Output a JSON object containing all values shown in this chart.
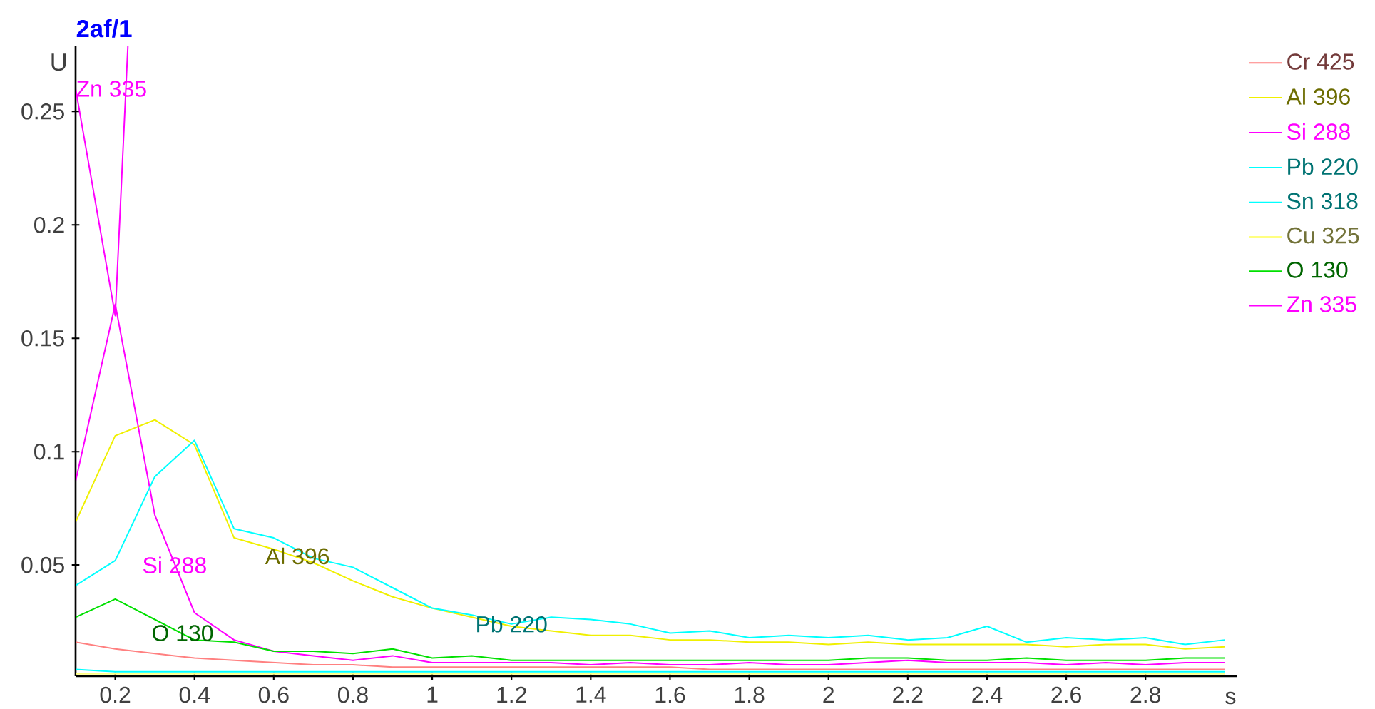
{
  "chart_data": {
    "type": "line",
    "title": "2af/1",
    "xlabel": "s",
    "ylabel": "U",
    "x": [
      0.1,
      0.2,
      0.3,
      0.4,
      0.5,
      0.6,
      0.7,
      0.8,
      0.9,
      1.0,
      1.1,
      1.2,
      1.3,
      1.4,
      1.5,
      1.6,
      1.7,
      1.8,
      1.9,
      2.0,
      2.1,
      2.2,
      2.3,
      2.4,
      2.5,
      2.6,
      2.7,
      2.8,
      2.9,
      3.0
    ],
    "series": [
      {
        "name": "Cr 425",
        "color": "#ff8080",
        "values": [
          0.016,
          0.013,
          0.011,
          0.009,
          0.008,
          0.007,
          0.006,
          0.006,
          0.005,
          0.005,
          0.005,
          0.005,
          0.005,
          0.005,
          0.005,
          0.005,
          0.004,
          0.004,
          0.004,
          0.004,
          0.004,
          0.004,
          0.004,
          0.004,
          0.004,
          0.004,
          0.004,
          0.004,
          0.004,
          0.004
        ]
      },
      {
        "name": "Al 396",
        "color": "#f0f000",
        "values": [
          0.069,
          0.107,
          0.114,
          0.103,
          0.062,
          0.057,
          0.051,
          0.043,
          0.036,
          0.031,
          0.027,
          0.023,
          0.021,
          0.019,
          0.019,
          0.017,
          0.017,
          0.016,
          0.016,
          0.015,
          0.016,
          0.015,
          0.015,
          0.015,
          0.015,
          0.014,
          0.015,
          0.015,
          0.013,
          0.014
        ]
      },
      {
        "name": "Si 288",
        "color": "#ff00ff",
        "values": [
          0.087,
          0.165,
          0.072,
          0.029,
          0.017,
          0.012,
          0.01,
          0.008,
          0.01,
          0.007,
          0.007,
          0.007,
          0.007,
          0.006,
          0.007,
          0.006,
          0.006,
          0.007,
          0.006,
          0.006,
          0.007,
          0.008,
          0.007,
          0.007,
          0.007,
          0.006,
          0.007,
          0.006,
          0.007,
          0.007
        ]
      },
      {
        "name": "Pb 220",
        "color": "#00ffff",
        "values": [
          0.041,
          0.052,
          0.089,
          0.105,
          0.066,
          0.062,
          0.053,
          0.049,
          0.04,
          0.031,
          0.028,
          0.024,
          0.027,
          0.026,
          0.024,
          0.02,
          0.021,
          0.018,
          0.019,
          0.018,
          0.019,
          0.017,
          0.018,
          0.023,
          0.016,
          0.018,
          0.017,
          0.018,
          0.015,
          0.017
        ]
      },
      {
        "name": "Sn 318",
        "color": "#00ffff",
        "values": [
          0.004,
          0.003,
          0.003,
          0.003,
          0.003,
          0.003,
          0.003,
          0.003,
          0.003,
          0.003,
          0.003,
          0.003,
          0.003,
          0.003,
          0.003,
          0.003,
          0.003,
          0.003,
          0.003,
          0.003,
          0.003,
          0.003,
          0.003,
          0.003,
          0.003,
          0.003,
          0.003,
          0.003,
          0.003,
          0.003
        ]
      },
      {
        "name": "Cu 325",
        "color": "#ffff80",
        "values": [
          0.002,
          0.002,
          0.002,
          0.002,
          0.002,
          0.002,
          0.002,
          0.002,
          0.002,
          0.002,
          0.002,
          0.002,
          0.002,
          0.002,
          0.002,
          0.002,
          0.002,
          0.002,
          0.002,
          0.002,
          0.002,
          0.002,
          0.002,
          0.002,
          0.002,
          0.002,
          0.002,
          0.002,
          0.002,
          0.002
        ]
      },
      {
        "name": "O 130",
        "color": "#00e000",
        "values": [
          0.027,
          0.035,
          0.026,
          0.017,
          0.016,
          0.012,
          0.012,
          0.011,
          0.013,
          0.009,
          0.01,
          0.008,
          0.008,
          0.008,
          0.008,
          0.008,
          0.008,
          0.008,
          0.008,
          0.008,
          0.009,
          0.009,
          0.008,
          0.008,
          0.009,
          0.008,
          0.008,
          0.008,
          0.009,
          0.009
        ]
      },
      {
        "name": "Zn 335",
        "color": "#ff00ff",
        "x": [
          0.1,
          0.2,
          0.232
        ],
        "values": [
          0.26,
          0.16,
          0.279
        ]
      }
    ],
    "annotations": [
      {
        "text": "Zn 335",
        "x": 0.1,
        "y": 0.26
      },
      {
        "text": "Si 288",
        "x": 0.35,
        "y": 0.05
      },
      {
        "text": "Al 396",
        "x": 0.66,
        "y": 0.054
      },
      {
        "text": "Pb 220",
        "x": 1.2,
        "y": 0.024
      },
      {
        "text": "O 130",
        "x": 0.37,
        "y": 0.02
      }
    ],
    "xlim": [
      0.1,
      3.03
    ],
    "ylim": [
      0.001,
      0.279
    ],
    "xticks": [
      0.2,
      0.4,
      0.6,
      0.8,
      1,
      1.2,
      1.4,
      1.6,
      1.8,
      2,
      2.2,
      2.4,
      2.6,
      2.8
    ],
    "yticks": [
      0.05,
      0.1,
      0.15,
      0.2,
      0.25
    ],
    "grid": false,
    "legend": "right",
    "marker": "none",
    "line_style": "solid"
  }
}
